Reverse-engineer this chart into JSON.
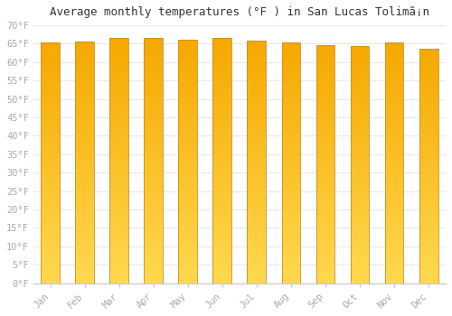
{
  "title": "Average monthly temperatures (°F ) in San Lucas Tolimã¡n",
  "months": [
    "Jan",
    "Feb",
    "Mar",
    "Apr",
    "May",
    "Jun",
    "Jul",
    "Aug",
    "Sep",
    "Oct",
    "Nov",
    "Dec"
  ],
  "values": [
    65.3,
    65.5,
    66.5,
    66.5,
    66.2,
    66.5,
    65.8,
    65.3,
    64.6,
    64.4,
    65.3,
    63.7
  ],
  "bar_color_top": "#F5A800",
  "bar_color_bottom": "#FFD84E",
  "bar_edge_color": "#C89020",
  "ylim": [
    0,
    70
  ],
  "ytick_step": 5,
  "background_color": "#ffffff",
  "grid_color": "#e8e8e8",
  "title_fontsize": 9,
  "tick_fontsize": 7.5,
  "tick_color": "#aaaaaa",
  "font_family": "monospace",
  "bar_width": 0.55
}
